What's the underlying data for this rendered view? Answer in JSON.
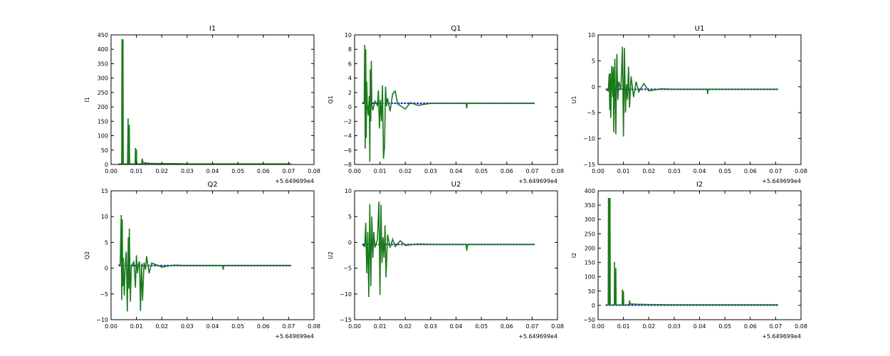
{
  "figure": {
    "title": "",
    "colors": {
      "series_a": "#1f1fd1",
      "series_b": "#1a7a1a",
      "axes": "#000000",
      "background": "#ffffff"
    }
  },
  "chart_data": [
    {
      "type": "line",
      "title": "I1",
      "xlabel": "",
      "ylabel": "I1",
      "xlim": [
        0.0,
        0.08
      ],
      "ylim": [
        0,
        450
      ],
      "xticks": [
        "0.00",
        "0.01",
        "0.02",
        "0.03",
        "0.04",
        "0.05",
        "0.06",
        "0.07",
        "0.08"
      ],
      "yticks": [
        "0",
        "50",
        "100",
        "150",
        "200",
        "250",
        "300",
        "350",
        "400",
        "450"
      ],
      "offset_label": "+5.649699e4",
      "grid": false,
      "series": [
        {
          "color": "#1f1fd1",
          "x": [
            0.003,
            0.071
          ],
          "y": [
            1,
            1
          ]
        },
        {
          "color": "#1a7a1a",
          "x": [
            0.003,
            0.0042,
            0.0043,
            0.0044,
            0.0045,
            0.0046,
            0.0047,
            0.0048,
            0.005,
            0.0055,
            0.0065,
            0.0067,
            0.0068,
            0.007,
            0.0072,
            0.0073,
            0.0075,
            0.0085,
            0.0095,
            0.0096,
            0.0097,
            0.0099,
            0.01,
            0.0101,
            0.0105,
            0.0115,
            0.012,
            0.0123,
            0.0127,
            0.0135,
            0.015,
            0.02,
            0.025,
            0.03,
            0.04,
            0.05,
            0.06,
            0.071
          ],
          "y": [
            1,
            2,
            435,
            3,
            435,
            2,
            435,
            2,
            1,
            1,
            2,
            160,
            3,
            2,
            138,
            3,
            1,
            1,
            2,
            57,
            2,
            2,
            52,
            2,
            1,
            1,
            3,
            20,
            3,
            6,
            4,
            3,
            3,
            2,
            2,
            2,
            2,
            2
          ]
        }
      ]
    },
    {
      "type": "line",
      "title": "Q1",
      "xlabel": "",
      "ylabel": "Q1",
      "xlim": [
        0.0,
        0.08
      ],
      "ylim": [
        -8,
        10
      ],
      "xticks": [
        "0.00",
        "0.01",
        "0.02",
        "0.03",
        "0.04",
        "0.05",
        "0.06",
        "0.07",
        "0.08"
      ],
      "yticks": [
        "−8",
        "−6",
        "−4",
        "−2",
        "0",
        "2",
        "4",
        "6",
        "8",
        "10"
      ],
      "offset_label": "+5.649699e4",
      "grid": false,
      "series": [
        {
          "color": "#1f1fd1",
          "x": [
            0.003,
            0.071
          ],
          "y": [
            0.5,
            0.5
          ]
        },
        {
          "color": "#1a7a1a",
          "x": [
            0.003,
            0.0038,
            0.004,
            0.0042,
            0.0044,
            0.0046,
            0.0048,
            0.005,
            0.0054,
            0.0058,
            0.006,
            0.0062,
            0.0064,
            0.0066,
            0.0068,
            0.0072,
            0.008,
            0.009,
            0.0094,
            0.0098,
            0.0102,
            0.0106,
            0.011,
            0.0114,
            0.0118,
            0.0122,
            0.0126,
            0.013,
            0.014,
            0.015,
            0.016,
            0.017,
            0.02,
            0.022,
            0.025,
            0.03,
            0.044,
            0.0442,
            0.0444,
            0.05,
            0.06,
            0.071
          ],
          "y": [
            0.5,
            0.7,
            8.6,
            -5.8,
            8.0,
            -4.3,
            3.5,
            0.4,
            -1.2,
            1.5,
            -7.6,
            5.2,
            -2.0,
            6.4,
            0.3,
            -0.5,
            0.8,
            0.2,
            2.3,
            -3.0,
            1.0,
            -2.0,
            3.0,
            -7.2,
            -5.6,
            2.8,
            0.1,
            1.2,
            -0.6,
            1.8,
            2.2,
            0.4,
            -0.3,
            0.6,
            0.2,
            0.5,
            0.5,
            -0.2,
            0.5,
            0.5,
            0.5,
            0.5
          ]
        }
      ]
    },
    {
      "type": "line",
      "title": "U1",
      "xlabel": "",
      "ylabel": "U1",
      "xlim": [
        0.0,
        0.08
      ],
      "ylim": [
        -15,
        10
      ],
      "xticks": [
        "0.00",
        "0.01",
        "0.02",
        "0.03",
        "0.04",
        "0.05",
        "0.06",
        "0.07",
        "0.08"
      ],
      "yticks": [
        "−15",
        "−10",
        "−5",
        "0",
        "5",
        "10"
      ],
      "offset_label": "+5.649699e4",
      "grid": false,
      "series": [
        {
          "color": "#1f1fd1",
          "x": [
            0.003,
            0.071
          ],
          "y": [
            -0.5,
            -0.5
          ]
        },
        {
          "color": "#1a7a1a",
          "x": [
            0.003,
            0.004,
            0.0044,
            0.0046,
            0.0048,
            0.005,
            0.0054,
            0.0058,
            0.006,
            0.0062,
            0.0066,
            0.007,
            0.0074,
            0.0078,
            0.0082,
            0.009,
            0.0096,
            0.01,
            0.0104,
            0.0108,
            0.0112,
            0.0116,
            0.012,
            0.0124,
            0.013,
            0.014,
            0.015,
            0.016,
            0.018,
            0.02,
            0.025,
            0.03,
            0.042,
            0.043,
            0.0432,
            0.0434,
            0.05,
            0.06,
            0.071
          ],
          "y": [
            -0.5,
            -0.8,
            2.5,
            -4.5,
            2.6,
            -6.0,
            4.0,
            -2.0,
            3.8,
            -8.8,
            5.4,
            -9.2,
            6.3,
            -2.5,
            1.0,
            -0.5,
            7.7,
            -9.6,
            7.5,
            -5.0,
            0.5,
            -2.5,
            3.9,
            -4.0,
            2.0,
            -2.0,
            1.0,
            -1.0,
            0.6,
            -0.8,
            -0.4,
            -0.5,
            -0.5,
            -0.5,
            -1.4,
            -0.5,
            -0.5,
            -0.5,
            -0.5
          ]
        }
      ]
    },
    {
      "type": "line",
      "title": "Q2",
      "xlabel": "",
      "ylabel": "Q2",
      "xlim": [
        0.0,
        0.08
      ],
      "ylim": [
        -10,
        15
      ],
      "xticks": [
        "0.00",
        "0.01",
        "0.02",
        "0.03",
        "0.04",
        "0.05",
        "0.06",
        "0.07",
        "0.08"
      ],
      "yticks": [
        "−10",
        "−5",
        "0",
        "5",
        "10",
        "15"
      ],
      "offset_label": "+5.649699e4",
      "grid": false,
      "series": [
        {
          "color": "#1f1fd1",
          "x": [
            0.003,
            0.071
          ],
          "y": [
            0.5,
            0.5
          ]
        },
        {
          "color": "#1a7a1a",
          "x": [
            0.003,
            0.0036,
            0.004,
            0.0042,
            0.0044,
            0.0046,
            0.0048,
            0.0052,
            0.0056,
            0.006,
            0.0064,
            0.0068,
            0.007,
            0.0072,
            0.0076,
            0.008,
            0.009,
            0.0096,
            0.01,
            0.0104,
            0.0108,
            0.0112,
            0.0116,
            0.012,
            0.0124,
            0.013,
            0.0136,
            0.014,
            0.015,
            0.016,
            0.02,
            0.025,
            0.03,
            0.044,
            0.0442,
            0.0444,
            0.05,
            0.06,
            0.071
          ],
          "y": [
            0.5,
            0.8,
            10.3,
            -6.2,
            9.5,
            -3.5,
            2.0,
            -5.3,
            1.0,
            3.2,
            -8.4,
            6.0,
            -4.0,
            7.7,
            -6.5,
            0.5,
            1.2,
            -3.8,
            2.5,
            -1.0,
            0.8,
            1.3,
            -8.3,
            0.9,
            -6.3,
            1.1,
            -0.3,
            2.3,
            -1.0,
            1.0,
            0.2,
            0.6,
            0.5,
            0.5,
            -0.3,
            0.5,
            0.5,
            0.5,
            0.5
          ]
        }
      ]
    },
    {
      "type": "line",
      "title": "U2",
      "xlabel": "",
      "ylabel": "U2",
      "xlim": [
        0.0,
        0.08
      ],
      "ylim": [
        -15,
        10
      ],
      "xticks": [
        "0.00",
        "0.01",
        "0.02",
        "0.03",
        "0.04",
        "0.05",
        "0.06",
        "0.07",
        "0.08"
      ],
      "yticks": [
        "−15",
        "−10",
        "−5",
        "0",
        "5",
        "10"
      ],
      "offset_label": "+5.649699e4",
      "grid": false,
      "series": [
        {
          "color": "#1f1fd1",
          "x": [
            0.003,
            0.071
          ],
          "y": [
            -0.4,
            -0.4
          ]
        },
        {
          "color": "#1a7a1a",
          "x": [
            0.003,
            0.004,
            0.0044,
            0.0048,
            0.0052,
            0.0056,
            0.006,
            0.0064,
            0.0068,
            0.0072,
            0.0076,
            0.008,
            0.009,
            0.0096,
            0.01,
            0.0104,
            0.0108,
            0.0112,
            0.0116,
            0.012,
            0.0124,
            0.013,
            0.014,
            0.015,
            0.016,
            0.018,
            0.02,
            0.025,
            0.03,
            0.044,
            0.0442,
            0.0446,
            0.05,
            0.06,
            0.071
          ],
          "y": [
            -0.4,
            -0.8,
            3.8,
            -6.0,
            2.0,
            -10.6,
            7.4,
            -8.5,
            5.0,
            -3.0,
            2.0,
            -1.0,
            0.5,
            7.9,
            -10.2,
            7.3,
            -4.0,
            1.0,
            -3.0,
            3.3,
            -6.8,
            1.5,
            -1.0,
            0.6,
            -0.8,
            0.3,
            -0.6,
            -0.3,
            -0.4,
            -0.4,
            -1.6,
            -0.4,
            -0.4,
            -0.4,
            -0.4
          ]
        }
      ]
    },
    {
      "type": "line",
      "title": "I2",
      "xlabel": "",
      "ylabel": "I2",
      "xlim": [
        0.0,
        0.08
      ],
      "ylim": [
        -50,
        400
      ],
      "xticks": [
        "0.00",
        "0.01",
        "0.02",
        "0.03",
        "0.04",
        "0.05",
        "0.06",
        "0.07",
        "0.08"
      ],
      "yticks": [
        "−50",
        "0",
        "50",
        "100",
        "150",
        "200",
        "250",
        "300",
        "350",
        "400"
      ],
      "offset_label": "+5.649699e4",
      "grid": false,
      "series": [
        {
          "color": "#1f1fd1",
          "x": [
            0.003,
            0.071
          ],
          "y": [
            1,
            1
          ]
        },
        {
          "color": "#1a7a1a",
          "x": [
            0.003,
            0.004,
            0.0041,
            0.0042,
            0.0043,
            0.0044,
            0.0045,
            0.0046,
            0.0047,
            0.0048,
            0.005,
            0.006,
            0.0064,
            0.0065,
            0.0066,
            0.0068,
            0.007,
            0.0071,
            0.0073,
            0.0085,
            0.0095,
            0.0096,
            0.0097,
            0.0099,
            0.01,
            0.0101,
            0.0105,
            0.0115,
            0.0123,
            0.0124,
            0.0127,
            0.013,
            0.015,
            0.02,
            0.03,
            0.04,
            0.05,
            0.06,
            0.071
          ],
          "y": [
            1,
            2,
            375,
            2,
            375,
            2,
            375,
            2,
            375,
            2,
            1,
            1,
            2,
            152,
            3,
            2,
            130,
            3,
            1,
            1,
            2,
            55,
            2,
            2,
            50,
            2,
            1,
            1,
            3,
            17,
            3,
            5,
            4,
            3,
            2,
            2,
            2,
            2,
            2
          ]
        }
      ]
    }
  ]
}
